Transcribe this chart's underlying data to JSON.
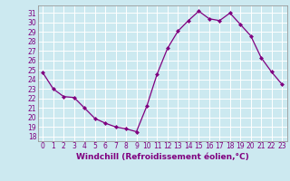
{
  "x": [
    0,
    1,
    2,
    3,
    4,
    5,
    6,
    7,
    8,
    9,
    10,
    11,
    12,
    13,
    14,
    15,
    16,
    17,
    18,
    19,
    20,
    21,
    22,
    23
  ],
  "y": [
    24.7,
    23.0,
    22.2,
    22.1,
    21.0,
    19.9,
    19.4,
    19.0,
    18.8,
    18.5,
    21.2,
    24.6,
    27.3,
    29.1,
    30.2,
    31.2,
    30.4,
    30.2,
    31.0,
    29.8,
    28.6,
    26.3,
    24.8,
    23.5
  ],
  "line_color": "#800080",
  "marker": "D",
  "marker_size": 2.0,
  "bg_color": "#cce9f0",
  "grid_color": "#ffffff",
  "xlabel": "Windchill (Refroidissement éolien,°C)",
  "xlabel_fontsize": 6.5,
  "xlim": [
    -0.5,
    23.5
  ],
  "ylim": [
    17.5,
    31.8
  ],
  "yticks": [
    18,
    19,
    20,
    21,
    22,
    23,
    24,
    25,
    26,
    27,
    28,
    29,
    30,
    31
  ],
  "xticks": [
    0,
    1,
    2,
    3,
    4,
    5,
    6,
    7,
    8,
    9,
    10,
    11,
    12,
    13,
    14,
    15,
    16,
    17,
    18,
    19,
    20,
    21,
    22,
    23
  ],
  "tick_fontsize": 5.5,
  "spine_color": "#999999"
}
